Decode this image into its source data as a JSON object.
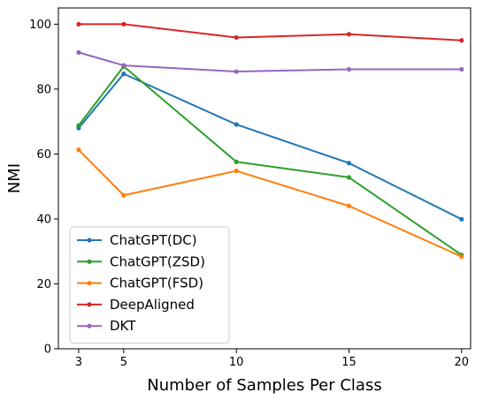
{
  "chart_data": {
    "type": "line",
    "title": "",
    "xlabel": "Number of Samples Per Class",
    "ylabel": "NMI",
    "x": [
      3,
      5,
      10,
      15,
      20
    ],
    "xticks": [
      3,
      5,
      10,
      15,
      20
    ],
    "yticks": [
      0,
      20,
      40,
      60,
      80,
      100
    ],
    "xlim": [
      2.1,
      20.4
    ],
    "ylim": [
      0,
      105
    ],
    "grid": false,
    "legend_position": "lower-left",
    "series": [
      {
        "name": "ChatGPT(DC)",
        "color": "#1f77b4",
        "values": [
          68.0,
          84.7,
          69.1,
          57.2,
          39.9
        ]
      },
      {
        "name": "ChatGPT(ZSD)",
        "color": "#2ca02c",
        "values": [
          68.8,
          87.0,
          57.6,
          52.8,
          28.9
        ]
      },
      {
        "name": "ChatGPT(FSD)",
        "color": "#ff7f0e",
        "values": [
          61.3,
          47.3,
          54.8,
          44.0,
          28.4
        ]
      },
      {
        "name": "DeepAligned",
        "color": "#d62728",
        "values": [
          100.0,
          100.0,
          95.9,
          96.9,
          95.0
        ]
      },
      {
        "name": "DKT",
        "color": "#9467bd",
        "values": [
          91.3,
          87.3,
          85.4,
          86.1,
          86.1
        ]
      }
    ]
  }
}
